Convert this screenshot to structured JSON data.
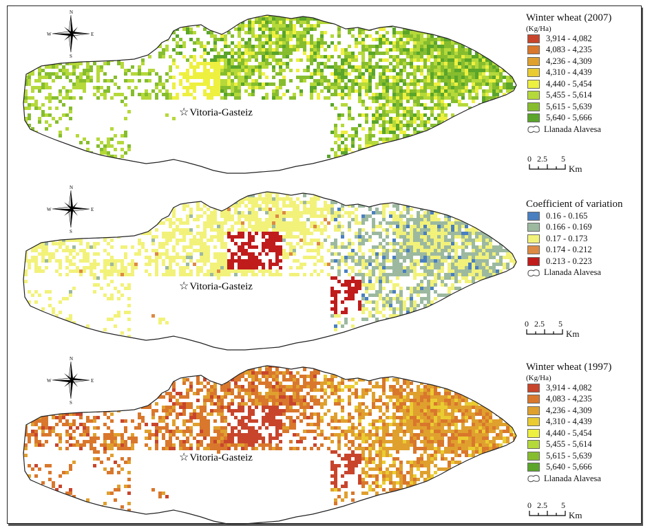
{
  "city_label": "Vitoria-Gasteiz",
  "compass": {
    "n": "N",
    "s": "S",
    "e": "E",
    "w": "W"
  },
  "panels": [
    {
      "title": "Winter wheat (2007)",
      "unit": "(Kg/Ha)",
      "classes": [
        {
          "label": "3,914 - 4,082",
          "color": "#c8452c"
        },
        {
          "label": "4,083 - 4,235",
          "color": "#d9772c"
        },
        {
          "label": "4,236 - 4,309",
          "color": "#e0a02e"
        },
        {
          "label": "4,310 - 4,439",
          "color": "#eacc32"
        },
        {
          "label": "4,440 - 5,454",
          "color": "#eef040"
        },
        {
          "label": "5,455 - 5,614",
          "color": "#b5d93a"
        },
        {
          "label": "5,615 - 5,639",
          "color": "#86bd2e"
        },
        {
          "label": "5,640 - 5,666",
          "color": "#5aa52a"
        }
      ],
      "boundary_label": "Llanada Alavesa",
      "scale": {
        "ticks": [
          "0",
          "2.5",
          "5"
        ],
        "unit": "Km"
      }
    },
    {
      "title": "Coefficient of variation",
      "unit": "",
      "classes": [
        {
          "label": "0.16 - 0.165",
          "color": "#4a7fc0"
        },
        {
          "label": "0.166 - 0.169",
          "color": "#9cb9a0"
        },
        {
          "label": "0.17 - 0.173",
          "color": "#f2f27a"
        },
        {
          "label": "0.174 - 0.212",
          "color": "#dd8a44"
        },
        {
          "label": "0.213 - 0.223",
          "color": "#c01c1c"
        }
      ],
      "boundary_label": "Llanada Alavesa",
      "scale": {
        "ticks": [
          "0",
          "2.5",
          "5"
        ],
        "unit": "Km"
      }
    },
    {
      "title": "Winter wheat (1997)",
      "unit": "(Kg/Ha)",
      "classes": [
        {
          "label": "3,914 - 4,082",
          "color": "#c8452c"
        },
        {
          "label": "4,083 - 4,235",
          "color": "#d9772c"
        },
        {
          "label": "4,236 - 4,309",
          "color": "#e0a02e"
        },
        {
          "label": "4,310 - 4,439",
          "color": "#eacc32"
        },
        {
          "label": "4,440 - 5,454",
          "color": "#eef040"
        },
        {
          "label": "5,455 - 5,614",
          "color": "#b5d93a"
        },
        {
          "label": "5,615 - 5,639",
          "color": "#86bd2e"
        },
        {
          "label": "5,640 - 5,666",
          "color": "#5aa52a"
        }
      ],
      "boundary_label": "Llanada Alavesa",
      "scale": {
        "ticks": [
          "0",
          "2.5",
          "5"
        ],
        "unit": "Km"
      }
    }
  ]
}
